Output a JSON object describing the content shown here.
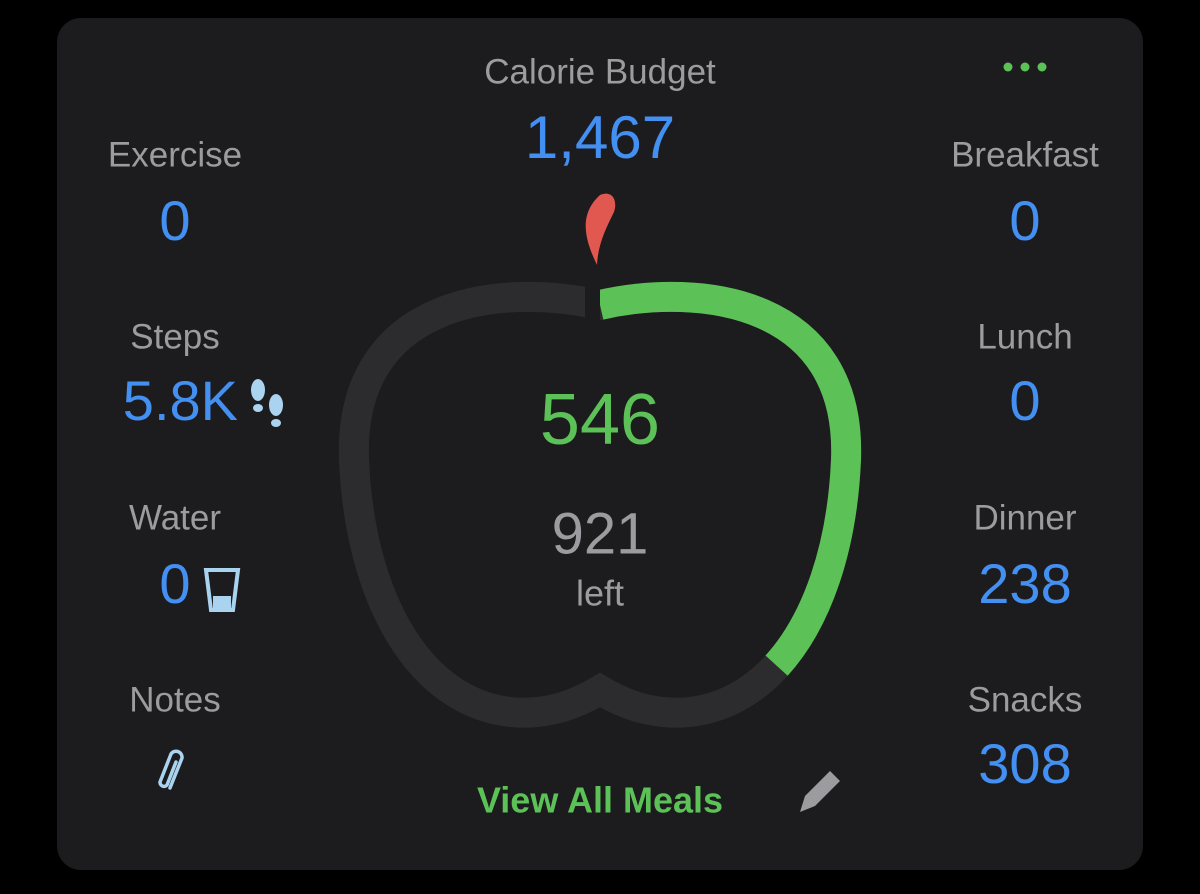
{
  "header": {
    "title": "Calorie Budget",
    "budget": {
      "value": 1467,
      "label": "1,467"
    }
  },
  "left": [
    {
      "label": "Exercise",
      "value": "0"
    },
    {
      "label": "Steps",
      "value": "5.8K"
    },
    {
      "label": "Water",
      "value": "0"
    },
    {
      "label": "Notes"
    }
  ],
  "right": [
    {
      "label": "Breakfast",
      "value": "0"
    },
    {
      "label": "Lunch",
      "value": "0"
    },
    {
      "label": "Dinner",
      "value": "238"
    },
    {
      "label": "Snacks",
      "value": "308"
    }
  ],
  "center": {
    "eaten": 546,
    "remaining": 921,
    "remaining_label": "left"
  },
  "footer": {
    "link": "View All Meals"
  }
}
